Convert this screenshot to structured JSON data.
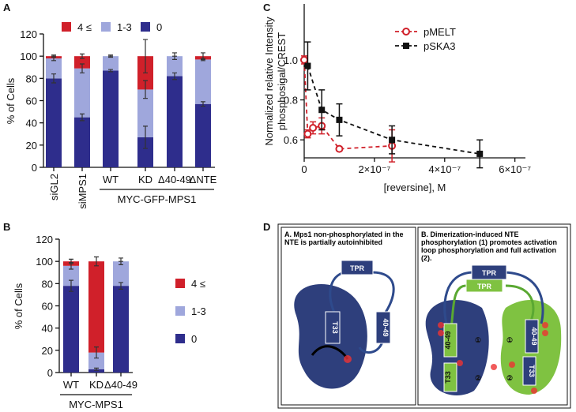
{
  "panels": [
    "A",
    "B",
    "C",
    "D"
  ],
  "chart_data": [
    {
      "type": "bar",
      "stacked": true,
      "ylabel": "% of Cells",
      "categories": [
        "siGL2",
        "siMPS1",
        "WT",
        "KD",
        "Δ40-49",
        "ΔNTE"
      ],
      "group_label": "MYC-GFP-MPS1",
      "ylim": [
        0,
        120
      ],
      "yticks": [
        0,
        20,
        40,
        60,
        80,
        100,
        120
      ],
      "series": [
        {
          "name": "0",
          "color": "#2e2d8c",
          "values": [
            80,
            45,
            87,
            27,
            82,
            57
          ],
          "errors": [
            4,
            3,
            1,
            10,
            3,
            2
          ]
        },
        {
          "name": "1-3",
          "color": "#9fa7dc",
          "values": [
            18,
            44,
            13,
            43,
            18,
            40
          ],
          "errors": [
            2,
            4,
            0,
            8,
            0,
            1
          ]
        },
        {
          "name": "4 ≤",
          "color": "#d0202a",
          "values": [
            2,
            11,
            0,
            30,
            0,
            3
          ],
          "errors": [
            1,
            2,
            1,
            15,
            3,
            3
          ]
        }
      ]
    },
    {
      "type": "bar",
      "stacked": true,
      "ylabel": "%  of Cells",
      "categories": [
        "WT",
        "KD",
        "Δ40-49"
      ],
      "group_label": "MYC-MPS1",
      "ylim": [
        0,
        120
      ],
      "yticks": [
        0,
        20,
        40,
        60,
        80,
        100,
        120
      ],
      "series": [
        {
          "name": "0",
          "color": "#2e2d8c",
          "values": [
            78,
            3,
            78
          ],
          "errors": [
            5,
            1,
            3
          ]
        },
        {
          "name": "1-3",
          "color": "#9fa7dc",
          "values": [
            18,
            15,
            22
          ],
          "errors": [
            3,
            5,
            0
          ]
        },
        {
          "name": "4 ≤",
          "color": "#d0202a",
          "values": [
            4,
            82,
            0
          ],
          "errors": [
            2,
            4,
            3
          ]
        }
      ]
    },
    {
      "type": "scatter",
      "xlabel": "[reversine], M",
      "ylabel": [
        "Normalized relative Intensity",
        "phosphosigal/CREST"
      ],
      "xlim": [
        0,
        6.3e-07
      ],
      "xticks": [
        0,
        {
          "value": 2e-07,
          "label": "2×10⁻⁷"
        },
        {
          "value": 4e-07,
          "label": "4×10⁻⁷"
        },
        {
          "value": 6e-07,
          "label": "6×10⁻⁷"
        }
      ],
      "ylim": [
        0.51,
        1.28
      ],
      "yticks": [
        0.6,
        0.8,
        {
          "value": 1,
          "label": "1.0"
        }
      ],
      "series": [
        {
          "name": "pMELT",
          "color": "#d0202a",
          "marker": "circle",
          "x": [
            0,
            1e-08,
            2.5e-08,
            5e-08,
            1e-07,
            2.5e-07
          ],
          "values": [
            1.0,
            0.63,
            0.66,
            0.67,
            0.555,
            0.57
          ],
          "errors": [
            0.02,
            0.02,
            0.03,
            0.04,
            0.01,
            0.08
          ]
        },
        {
          "name": "pSKA3",
          "color": "#111111",
          "marker": "square",
          "x": [
            1e-08,
            5e-08,
            1e-07,
            2.5e-07,
            5e-07
          ],
          "values": [
            0.97,
            0.75,
            0.7,
            0.6,
            0.53
          ],
          "errors": [
            0.12,
            0.1,
            0.08,
            0.07,
            0.07
          ]
        }
      ]
    }
  ],
  "diagram": {
    "left_title": "A.  Mps1 non-phosphorylated in the NTE is partially autoinhibited",
    "right_title": "B. Dimerization-induced NTE phosphorylation (1) promotes activation loop phosphorylation and full activation (2).",
    "left_labels": [
      "TPR",
      "40-49",
      "T33"
    ],
    "right_labels": [
      "TPR",
      "TPR",
      "40-49",
      "T33",
      "40-49",
      "T33",
      "①",
      "②",
      "①",
      "②"
    ]
  }
}
